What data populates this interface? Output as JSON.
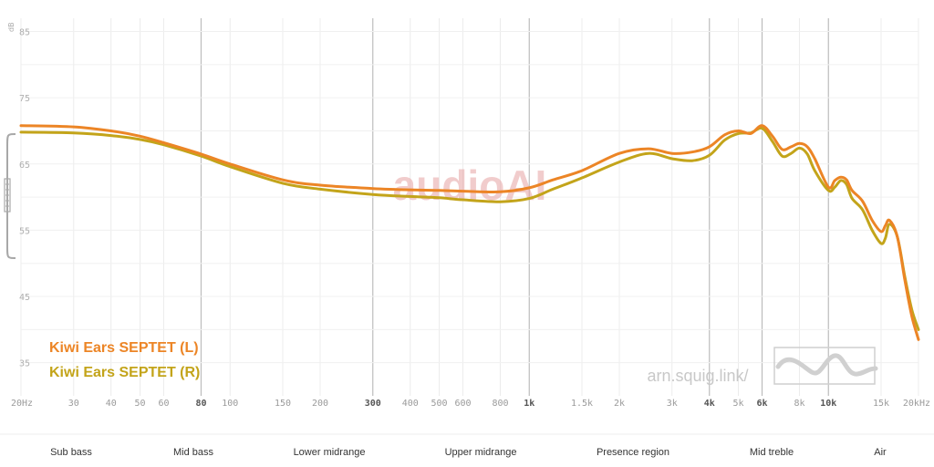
{
  "chart_data": {
    "type": "line",
    "ylabel": "dB",
    "xscale": "log",
    "xlim": [
      20,
      20000
    ],
    "ylim": [
      30,
      87
    ],
    "y_ticks": [
      85,
      75,
      65,
      55,
      45,
      35
    ],
    "x_ticks": [
      {
        "value": 20,
        "label": "20Hz",
        "major": false
      },
      {
        "value": 30,
        "label": "30",
        "major": false
      },
      {
        "value": 40,
        "label": "40",
        "major": false
      },
      {
        "value": 50,
        "label": "50",
        "major": false
      },
      {
        "value": 60,
        "label": "60",
        "major": false
      },
      {
        "value": 80,
        "label": "80",
        "major": true
      },
      {
        "value": 100,
        "label": "100",
        "major": false
      },
      {
        "value": 150,
        "label": "150",
        "major": false
      },
      {
        "value": 200,
        "label": "200",
        "major": false
      },
      {
        "value": 300,
        "label": "300",
        "major": true
      },
      {
        "value": 400,
        "label": "400",
        "major": false
      },
      {
        "value": 500,
        "label": "500",
        "major": false
      },
      {
        "value": 600,
        "label": "600",
        "major": false
      },
      {
        "value": 800,
        "label": "800",
        "major": false
      },
      {
        "value": 1000,
        "label": "1k",
        "major": true
      },
      {
        "value": 1500,
        "label": "1.5k",
        "major": false
      },
      {
        "value": 2000,
        "label": "2k",
        "major": false
      },
      {
        "value": 3000,
        "label": "3k",
        "major": false
      },
      {
        "value": 4000,
        "label": "4k",
        "major": true
      },
      {
        "value": 5000,
        "label": "5k",
        "major": false
      },
      {
        "value": 6000,
        "label": "6k",
        "major": true
      },
      {
        "value": 8000,
        "label": "8k",
        "major": false
      },
      {
        "value": 10000,
        "label": "10k",
        "major": true
      },
      {
        "value": 15000,
        "label": "15k",
        "major": false
      },
      {
        "value": 20000,
        "label": "20kHz",
        "major": false
      }
    ],
    "bands": [
      "Sub bass",
      "Mid bass",
      "Lower midrange",
      "Upper midrange",
      "Presence region",
      "Mid treble",
      "Air"
    ],
    "grid": true,
    "legend_position": "bottom-left",
    "series": [
      {
        "name": "Kiwi Ears SEPTET (L)",
        "color": "#ec8526",
        "x": [
          20,
          30,
          40,
          50,
          60,
          80,
          100,
          150,
          200,
          300,
          400,
          500,
          600,
          800,
          1000,
          1200,
          1500,
          2000,
          2500,
          3000,
          3500,
          4000,
          4500,
          5000,
          5500,
          6000,
          6500,
          7000,
          7500,
          8000,
          8500,
          9000,
          10000,
          10500,
          11000,
          11500,
          12000,
          13000,
          14000,
          15000,
          15500,
          16000,
          17000,
          18000,
          19000,
          20000
        ],
        "y": [
          70.8,
          70.6,
          70.0,
          69.2,
          68.2,
          66.5,
          65.0,
          62.6,
          61.8,
          61.3,
          61.1,
          61.0,
          60.9,
          60.8,
          61.4,
          62.6,
          64.0,
          66.6,
          67.3,
          66.6,
          66.8,
          67.6,
          69.4,
          70.0,
          69.6,
          70.8,
          69.2,
          67.2,
          67.6,
          68.1,
          67.6,
          65.8,
          61.5,
          62.5,
          63.0,
          62.6,
          61.0,
          59.4,
          56.5,
          54.8,
          55.7,
          56.5,
          54.0,
          47.5,
          42.0,
          38.5
        ]
      },
      {
        "name": "Kiwi Ears SEPTET (R)",
        "color": "#c3a41a",
        "x": [
          20,
          30,
          40,
          50,
          60,
          80,
          100,
          150,
          200,
          300,
          400,
          500,
          600,
          800,
          1000,
          1200,
          1500,
          2000,
          2500,
          3000,
          3500,
          4000,
          4500,
          5000,
          5500,
          6000,
          6500,
          7000,
          7500,
          8000,
          8500,
          9000,
          10000,
          10500,
          11000,
          11500,
          12000,
          13000,
          14000,
          15000,
          15500,
          16000,
          17000,
          18000,
          19000,
          20000
        ],
        "y": [
          69.8,
          69.7,
          69.3,
          68.7,
          67.9,
          66.2,
          64.6,
          62.1,
          61.2,
          60.4,
          60.1,
          59.9,
          59.6,
          59.3,
          59.8,
          61.2,
          62.9,
          65.3,
          66.6,
          65.8,
          65.5,
          66.3,
          68.6,
          69.6,
          69.7,
          70.4,
          68.4,
          66.2,
          66.6,
          67.4,
          66.5,
          64.0,
          61.0,
          61.5,
          62.5,
          61.9,
          59.8,
          58.1,
          55.0,
          53.0,
          53.8,
          55.9,
          54.0,
          48.0,
          43.0,
          40.0
        ]
      }
    ],
    "watermark": "audioAI",
    "credit": "arn.squig.link/"
  }
}
